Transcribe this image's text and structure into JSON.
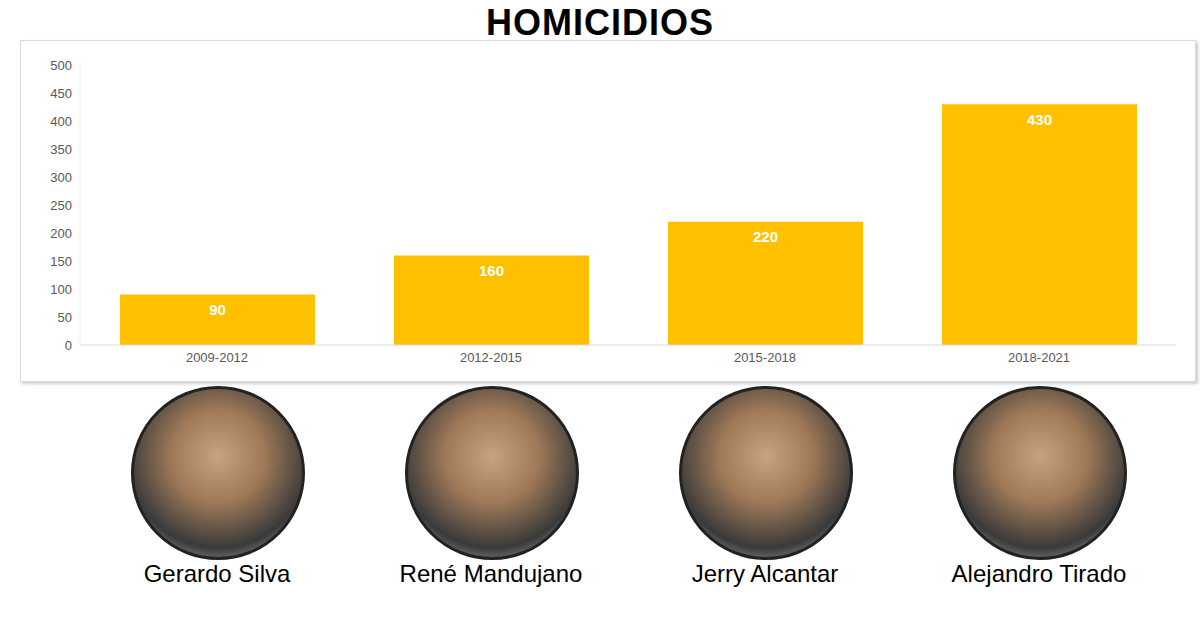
{
  "chart_data": {
    "type": "bar",
    "title": "HOMICIDIOS",
    "categories": [
      "2009-2012",
      "2012-2015",
      "2015-2018",
      "2018-2021"
    ],
    "values": [
      90,
      160,
      220,
      430
    ],
    "color": "#ffc000",
    "ylim": [
      0,
      500
    ],
    "yticks": [
      0,
      50,
      100,
      150,
      200,
      250,
      300,
      350,
      400,
      450,
      500
    ],
    "grid": false,
    "data_labels": true,
    "annotations": [
      "Gerardo Silva",
      "René Mandujano",
      "Jerry Alcantar",
      "Alejandro Tirado"
    ]
  }
}
